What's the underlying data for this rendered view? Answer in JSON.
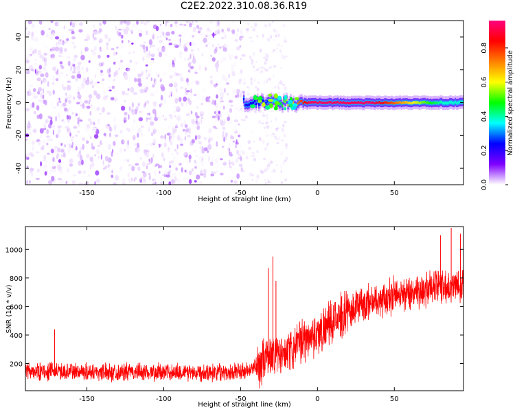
{
  "title": "C2E2.2022.310.08.36.R19",
  "chart_data": [
    {
      "type": "heatmap",
      "xlabel": "Height of straight line (km)",
      "ylabel": "Frequency (Hz)",
      "xlim": [
        -190,
        95
      ],
      "ylim": [
        -50,
        50
      ],
      "xticks": [
        -150,
        -100,
        -50,
        0,
        50
      ],
      "yticks": [
        -40,
        -20,
        0,
        20,
        40
      ],
      "colorbar": {
        "label": "Normalized spectral amplitude",
        "range": [
          0,
          0.96
        ],
        "ticks": [
          0.0,
          0.2,
          0.4,
          0.6,
          0.8
        ],
        "colormap": [
          "#ffffff",
          "#7f00ff",
          "#0000ff",
          "#00ffff",
          "#00ff00",
          "#ffff00",
          "#ff8000",
          "#ff0000",
          "#ff007f"
        ]
      },
      "noise_region_x": [
        -190,
        -48
      ],
      "sparse_region_x": [
        -48,
        -20
      ],
      "signal_band": {
        "x_start": -48,
        "x_end": 95,
        "center_frequency_hz": 0,
        "peak_x": [
          -5,
          35
        ],
        "peak_amplitude": 0.96
      }
    },
    {
      "type": "line",
      "xlabel": "Height of straight line (km)",
      "ylabel": "SNR (10 * v/v)",
      "xlim": [
        -190,
        95
      ],
      "ylim": [
        10,
        1160
      ],
      "xticks": [
        -150,
        -100,
        -50,
        0,
        50
      ],
      "yticks": [
        200,
        400,
        600,
        800,
        1000
      ],
      "series": [
        {
          "color": "#ff0000",
          "trend": {
            "x": [
              -190,
              -160,
              -130,
              -100,
              -70,
              -45,
              -38,
              -30,
              -25,
              -20,
              -15,
              -10,
              -5,
              0,
              10,
              20,
              30,
              40,
              50,
              60,
              70,
              80,
              90,
              95
            ],
            "y": [
              145,
              145,
              140,
              140,
              142,
              145,
              190,
              270,
              260,
              250,
              310,
              360,
              390,
              410,
              490,
              570,
              620,
              650,
              680,
              700,
              720,
              740,
              760,
              760
            ]
          },
          "spikes": [
            {
              "x": -171,
              "y": 440
            },
            {
              "x": -32,
              "y": 870
            },
            {
              "x": -29,
              "y": 950
            },
            {
              "x": -27,
              "y": 780
            },
            {
              "x": 80,
              "y": 1100
            },
            {
              "x": 87,
              "y": 1150
            },
            {
              "x": 93,
              "y": 1110
            }
          ]
        }
      ]
    }
  ]
}
